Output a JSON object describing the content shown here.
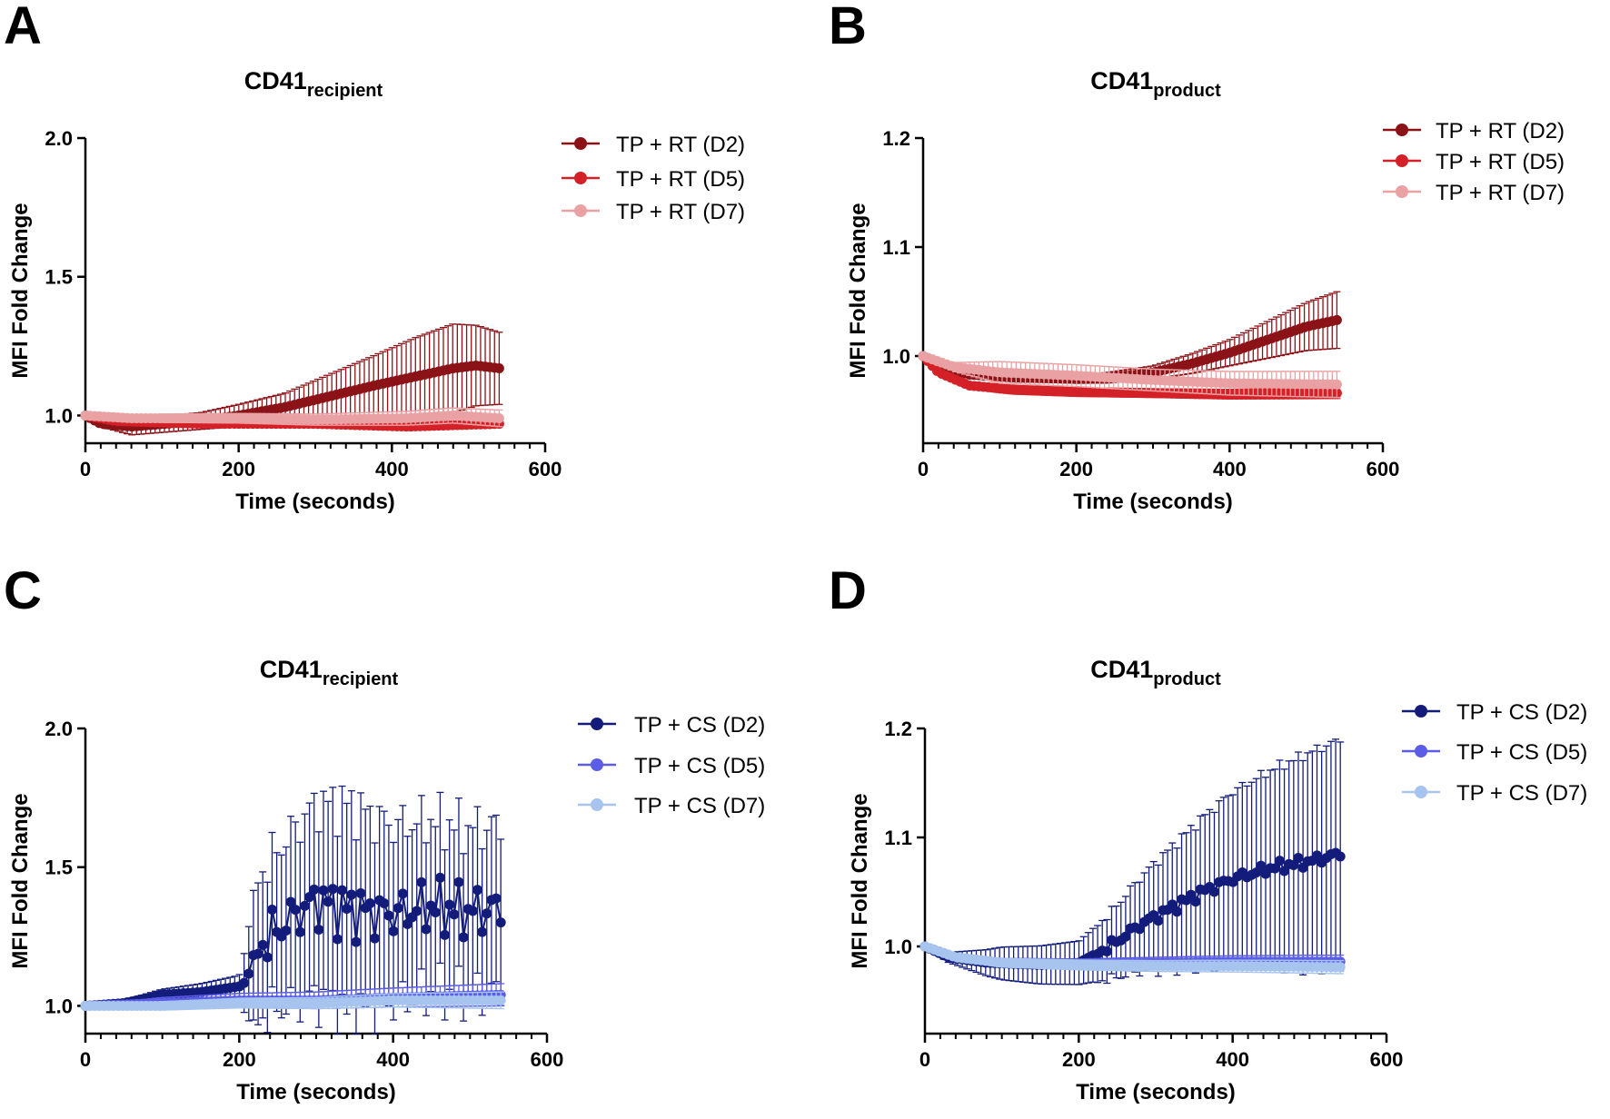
{
  "chart_data": [
    {
      "letter": "A",
      "type": "line",
      "title_main": "CD41",
      "title_sub": "recipient",
      "xlabel": "Time (seconds)",
      "ylabel": "MFI Fold Change",
      "xlim": [
        0,
        600
      ],
      "ylim": [
        0.9,
        2.0
      ],
      "xticks": [
        0,
        200,
        400,
        600
      ],
      "yticks": [
        1.0,
        1.5,
        2.0
      ],
      "ytick_labels": [
        "1.0",
        "1.5",
        "2.0"
      ],
      "legend_position": "top-right",
      "time_range": [
        0,
        540
      ],
      "series": [
        {
          "name": "TP + RT (D2)",
          "color": "#8b1318",
          "mean": [
            [
              0,
              1.0
            ],
            [
              20,
              0.97
            ],
            [
              60,
              0.96
            ],
            [
              150,
              0.98
            ],
            [
              200,
              1.0
            ],
            [
              260,
              1.03
            ],
            [
              320,
              1.07
            ],
            [
              380,
              1.11
            ],
            [
              430,
              1.14
            ],
            [
              480,
              1.17
            ],
            [
              510,
              1.18
            ],
            [
              540,
              1.17
            ]
          ],
          "err": [
            [
              0,
              0.0
            ],
            [
              60,
              0.03
            ],
            [
              150,
              0.03
            ],
            [
              200,
              0.04
            ],
            [
              260,
              0.05
            ],
            [
              320,
              0.08
            ],
            [
              380,
              0.11
            ],
            [
              430,
              0.14
            ],
            [
              480,
              0.16
            ],
            [
              540,
              0.13
            ]
          ]
        },
        {
          "name": "TP + RT (D5)",
          "color": "#d42027",
          "mean": [
            [
              0,
              1.0
            ],
            [
              40,
              0.98
            ],
            [
              150,
              0.97
            ],
            [
              300,
              0.97
            ],
            [
              420,
              0.96
            ],
            [
              540,
              0.97
            ]
          ],
          "err": [
            [
              0,
              0.0
            ],
            [
              100,
              0.01
            ],
            [
              300,
              0.01
            ],
            [
              540,
              0.01
            ]
          ]
        },
        {
          "name": "TP + RT (D7)",
          "color": "#eaa1a3",
          "mean": [
            [
              0,
              1.0
            ],
            [
              60,
              0.99
            ],
            [
              200,
              0.99
            ],
            [
              300,
              0.985
            ],
            [
              420,
              0.99
            ],
            [
              480,
              1.0
            ],
            [
              540,
              0.99
            ]
          ],
          "err": [
            [
              0,
              0.0
            ],
            [
              100,
              0.015
            ],
            [
              300,
              0.02
            ],
            [
              540,
              0.03
            ]
          ]
        }
      ]
    },
    {
      "letter": "B",
      "type": "line",
      "title_main": "CD41",
      "title_sub": "product",
      "xlabel": "Time (seconds)",
      "ylabel": "MFI Fold Change",
      "xlim": [
        0,
        600
      ],
      "ylim": [
        0.92,
        1.2
      ],
      "xticks": [
        0,
        200,
        400,
        600
      ],
      "yticks": [
        1.0,
        1.1,
        1.2
      ],
      "ytick_labels": [
        "1.0",
        "1.1",
        "1.2"
      ],
      "legend_position": "top-right",
      "time_range": [
        0,
        540
      ],
      "series": [
        {
          "name": "TP + RT (D2)",
          "color": "#8b1318",
          "mean": [
            [
              0,
              1.0
            ],
            [
              20,
              0.99
            ],
            [
              60,
              0.983
            ],
            [
              120,
              0.98
            ],
            [
              200,
              0.979
            ],
            [
              240,
              0.98
            ],
            [
              300,
              0.985
            ],
            [
              350,
              0.993
            ],
            [
              400,
              1.003
            ],
            [
              450,
              1.015
            ],
            [
              500,
              1.027
            ],
            [
              540,
              1.033
            ]
          ],
          "err": [
            [
              0,
              0.0
            ],
            [
              100,
              0.003
            ],
            [
              200,
              0.004
            ],
            [
              300,
              0.006
            ],
            [
              400,
              0.012
            ],
            [
              500,
              0.022
            ],
            [
              540,
              0.026
            ]
          ]
        },
        {
          "name": "TP + RT (D5)",
          "color": "#d42027",
          "mean": [
            [
              0,
              1.0
            ],
            [
              20,
              0.985
            ],
            [
              60,
              0.973
            ],
            [
              120,
              0.969
            ],
            [
              200,
              0.967
            ],
            [
              300,
              0.966
            ],
            [
              400,
              0.965
            ],
            [
              540,
              0.966
            ]
          ],
          "err": [
            [
              0,
              0.0
            ],
            [
              100,
              0.004
            ],
            [
              300,
              0.004
            ],
            [
              540,
              0.005
            ]
          ]
        },
        {
          "name": "TP + RT (D7)",
          "color": "#eaa1a3",
          "mean": [
            [
              0,
              1.0
            ],
            [
              40,
              0.99
            ],
            [
              100,
              0.985
            ],
            [
              200,
              0.982
            ],
            [
              300,
              0.978
            ],
            [
              400,
              0.975
            ],
            [
              540,
              0.974
            ]
          ],
          "err": [
            [
              0,
              0.0
            ],
            [
              100,
              0.01
            ],
            [
              300,
              0.01
            ],
            [
              540,
              0.012
            ]
          ]
        }
      ]
    },
    {
      "letter": "C",
      "type": "line",
      "title_main": "CD41",
      "title_sub": "recipient",
      "xlabel": "Time (seconds)",
      "ylabel": "MFI Fold Change",
      "xlim": [
        0,
        600
      ],
      "ylim": [
        0.9,
        2.0
      ],
      "xticks": [
        0,
        200,
        400,
        600
      ],
      "yticks": [
        1.0,
        1.5,
        2.0
      ],
      "ytick_labels": [
        "1.0",
        "1.5",
        "2.0"
      ],
      "legend_position": "top-right",
      "time_range": [
        0,
        540
      ],
      "series": [
        {
          "name": "TP + CS (D2)",
          "color": "#131c7a",
          "mean": [
            [
              0,
              1.0
            ],
            [
              50,
              1.01
            ],
            [
              100,
              1.04
            ],
            [
              150,
              1.05
            ],
            [
              200,
              1.07
            ],
            [
              210,
              1.09
            ],
            [
              220,
              1.2
            ],
            [
              260,
              1.3
            ],
            [
              300,
              1.38
            ],
            [
              340,
              1.35
            ],
            [
              400,
              1.33
            ],
            [
              450,
              1.36
            ],
            [
              500,
              1.34
            ],
            [
              540,
              1.35
            ]
          ],
          "err": [
            [
              0,
              0.0
            ],
            [
              100,
              0.02
            ],
            [
              200,
              0.04
            ],
            [
              220,
              0.25
            ],
            [
              300,
              0.35
            ],
            [
              340,
              0.38
            ],
            [
              400,
              0.32
            ],
            [
              500,
              0.3
            ],
            [
              540,
              0.3
            ]
          ],
          "noise": 0.12,
          "noise_start": 220
        },
        {
          "name": "TP + CS (D5)",
          "color": "#5b5de6",
          "mean": [
            [
              0,
              1.0
            ],
            [
              100,
              1.01
            ],
            [
              200,
              1.02
            ],
            [
              300,
              1.02
            ],
            [
              400,
              1.03
            ],
            [
              540,
              1.04
            ]
          ],
          "err": [
            [
              0,
              0.0
            ],
            [
              100,
              0.02
            ],
            [
              300,
              0.03
            ],
            [
              540,
              0.04
            ]
          ]
        },
        {
          "name": "TP + CS (D7)",
          "color": "#a7c4ef",
          "mean": [
            [
              0,
              1.0
            ],
            [
              100,
              1.0
            ],
            [
              200,
              1.01
            ],
            [
              300,
              1.01
            ],
            [
              400,
              1.02
            ],
            [
              540,
              1.02
            ]
          ],
          "err": [
            [
              0,
              0.0
            ],
            [
              100,
              0.015
            ],
            [
              300,
              0.02
            ],
            [
              540,
              0.03
            ]
          ]
        }
      ]
    },
    {
      "letter": "D",
      "type": "line",
      "title_main": "CD41",
      "title_sub": "product",
      "xlabel": "Time (seconds)",
      "ylabel": "MFI Fold Change",
      "xlim": [
        0,
        600
      ],
      "ylim": [
        0.92,
        1.2
      ],
      "xticks": [
        0,
        200,
        400,
        600
      ],
      "yticks": [
        1.0,
        1.1,
        1.2
      ],
      "ytick_labels": [
        "1.0",
        "1.1",
        "1.2"
      ],
      "legend_position": "top-right",
      "time_range": [
        0,
        540
      ],
      "series": [
        {
          "name": "TP + CS (D2)",
          "color": "#131c7a",
          "mean": [
            [
              0,
              1.0
            ],
            [
              30,
              0.99
            ],
            [
              80,
              0.985
            ],
            [
              150,
              0.983
            ],
            [
              200,
              0.985
            ],
            [
              240,
              1.0
            ],
            [
              280,
              1.02
            ],
            [
              320,
              1.035
            ],
            [
              360,
              1.05
            ],
            [
              400,
              1.062
            ],
            [
              450,
              1.072
            ],
            [
              500,
              1.078
            ],
            [
              540,
              1.085
            ]
          ],
          "err": [
            [
              0,
              0.0
            ],
            [
              100,
              0.015
            ],
            [
              200,
              0.02
            ],
            [
              240,
              0.03
            ],
            [
              300,
              0.05
            ],
            [
              400,
              0.08
            ],
            [
              500,
              0.1
            ],
            [
              540,
              0.105
            ]
          ],
          "noise": 0.006,
          "noise_start": 220
        },
        {
          "name": "TP + CS (D5)",
          "color": "#5b5de6",
          "mean": [
            [
              0,
              1.0
            ],
            [
              40,
              0.99
            ],
            [
              100,
              0.985
            ],
            [
              200,
              0.984
            ],
            [
              300,
              0.985
            ],
            [
              400,
              0.986
            ],
            [
              540,
              0.986
            ]
          ],
          "err": [
            [
              0,
              0.0
            ],
            [
              100,
              0.004
            ],
            [
              300,
              0.005
            ],
            [
              540,
              0.006
            ]
          ]
        },
        {
          "name": "TP + CS (D7)",
          "color": "#a7c4ef",
          "mean": [
            [
              0,
              1.0
            ],
            [
              40,
              0.99
            ],
            [
              100,
              0.985
            ],
            [
              200,
              0.983
            ],
            [
              300,
              0.982
            ],
            [
              400,
              0.982
            ],
            [
              540,
              0.981
            ]
          ],
          "err": [
            [
              0,
              0.0
            ],
            [
              100,
              0.004
            ],
            [
              300,
              0.005
            ],
            [
              540,
              0.006
            ]
          ]
        }
      ]
    }
  ]
}
